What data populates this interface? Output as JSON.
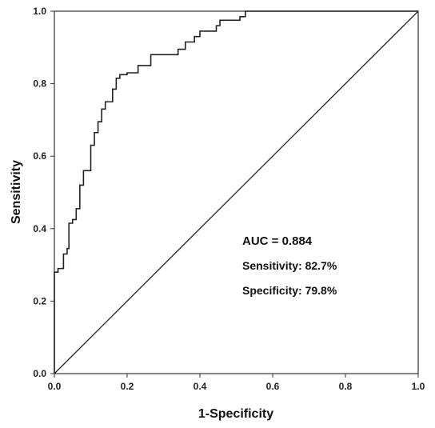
{
  "chart_data": {
    "type": "line",
    "title": "",
    "xlabel": "1-Specificity",
    "ylabel": "Sensitivity",
    "xlim": [
      0,
      1
    ],
    "ylim": [
      0,
      1
    ],
    "x_ticks": [
      "0.0",
      "0.2",
      "0.4",
      "0.6",
      "0.8",
      "1.0"
    ],
    "y_ticks": [
      "0.0",
      "0.2",
      "0.4",
      "0.6",
      "0.8",
      "1.0"
    ],
    "grid": false,
    "legend": "none",
    "annotations": [
      "AUC = 0.884",
      "Sensitivity: 82.7%",
      "Specificity: 79.8%"
    ],
    "series": [
      {
        "kind": "step",
        "color": "#222222",
        "points": [
          [
            0.0,
            0.0
          ],
          [
            0.0,
            0.28
          ],
          [
            0.01,
            0.28
          ],
          [
            0.01,
            0.29
          ],
          [
            0.025,
            0.29
          ],
          [
            0.025,
            0.33
          ],
          [
            0.035,
            0.33
          ],
          [
            0.035,
            0.345
          ],
          [
            0.04,
            0.345
          ],
          [
            0.04,
            0.415
          ],
          [
            0.05,
            0.415
          ],
          [
            0.05,
            0.425
          ],
          [
            0.06,
            0.425
          ],
          [
            0.06,
            0.455
          ],
          [
            0.07,
            0.455
          ],
          [
            0.07,
            0.52
          ],
          [
            0.08,
            0.52
          ],
          [
            0.08,
            0.56
          ],
          [
            0.1,
            0.56
          ],
          [
            0.1,
            0.63
          ],
          [
            0.11,
            0.63
          ],
          [
            0.11,
            0.665
          ],
          [
            0.12,
            0.665
          ],
          [
            0.12,
            0.695
          ],
          [
            0.13,
            0.695
          ],
          [
            0.13,
            0.73
          ],
          [
            0.14,
            0.73
          ],
          [
            0.14,
            0.75
          ],
          [
            0.16,
            0.75
          ],
          [
            0.16,
            0.785
          ],
          [
            0.17,
            0.785
          ],
          [
            0.17,
            0.815
          ],
          [
            0.18,
            0.815
          ],
          [
            0.18,
            0.825
          ],
          [
            0.2,
            0.825
          ],
          [
            0.2,
            0.83
          ],
          [
            0.23,
            0.83
          ],
          [
            0.23,
            0.85
          ],
          [
            0.265,
            0.85
          ],
          [
            0.265,
            0.88
          ],
          [
            0.34,
            0.88
          ],
          [
            0.34,
            0.895
          ],
          [
            0.36,
            0.895
          ],
          [
            0.36,
            0.915
          ],
          [
            0.385,
            0.915
          ],
          [
            0.385,
            0.93
          ],
          [
            0.4,
            0.93
          ],
          [
            0.4,
            0.945
          ],
          [
            0.445,
            0.945
          ],
          [
            0.445,
            0.96
          ],
          [
            0.455,
            0.96
          ],
          [
            0.455,
            0.975
          ],
          [
            0.51,
            0.975
          ],
          [
            0.51,
            0.985
          ],
          [
            0.525,
            0.985
          ],
          [
            0.525,
            1.0
          ],
          [
            1.0,
            1.0
          ]
        ]
      },
      {
        "kind": "reference",
        "color": "#222222",
        "points": [
          [
            0,
            0
          ],
          [
            1,
            1
          ]
        ]
      }
    ]
  }
}
